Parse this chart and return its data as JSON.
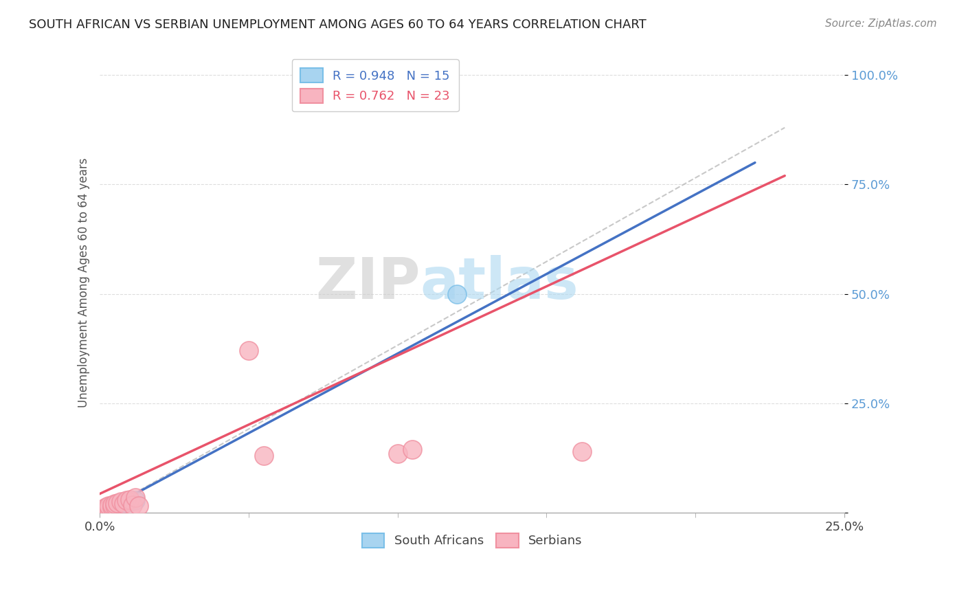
{
  "title": "SOUTH AFRICAN VS SERBIAN UNEMPLOYMENT AMONG AGES 60 TO 64 YEARS CORRELATION CHART",
  "source": "Source: ZipAtlas.com",
  "ylabel": "Unemployment Among Ages 60 to 64 years",
  "xlim": [
    0.0,
    0.25
  ],
  "ylim": [
    0.0,
    1.05
  ],
  "legend_label1": "R = 0.948   N = 15",
  "legend_label2": "R = 0.762   N = 23",
  "legend_labels": [
    "South Africans",
    "Serbians"
  ],
  "color_blue": "#A8D4F0",
  "color_pink": "#F8B4C0",
  "color_blue_line": "#4472C4",
  "color_pink_line": "#E8536A",
  "color_gray_line": "#BBBBBB",
  "watermark_zip": "ZIP",
  "watermark_atlas": "atlas",
  "background_color": "#FFFFFF",
  "sa_x": [
    0.001,
    0.002,
    0.002,
    0.003,
    0.003,
    0.004,
    0.004,
    0.005,
    0.005,
    0.006,
    0.007,
    0.008,
    0.01,
    0.012,
    0.12
  ],
  "sa_y": [
    0.005,
    0.006,
    0.009,
    0.008,
    0.012,
    0.01,
    0.014,
    0.012,
    0.016,
    0.018,
    0.02,
    0.022,
    0.025,
    0.028,
    0.5
  ],
  "serb_x": [
    0.001,
    0.001,
    0.002,
    0.002,
    0.003,
    0.003,
    0.004,
    0.004,
    0.005,
    0.005,
    0.006,
    0.007,
    0.008,
    0.009,
    0.01,
    0.011,
    0.012,
    0.013,
    0.05,
    0.055,
    0.1,
    0.105,
    0.162
  ],
  "serb_y": [
    0.004,
    0.008,
    0.007,
    0.012,
    0.01,
    0.015,
    0.013,
    0.018,
    0.016,
    0.02,
    0.022,
    0.025,
    0.02,
    0.028,
    0.03,
    0.018,
    0.035,
    0.015,
    0.37,
    0.13,
    0.135,
    0.145,
    0.14
  ],
  "sa_line": [
    0.0,
    0.0,
    0.22,
    0.8
  ],
  "serb_line": [
    -0.02,
    -0.02,
    0.23,
    0.77
  ],
  "ref_line": [
    0.0,
    0.0,
    0.23,
    0.88
  ],
  "grid_color": "#DDDDDD",
  "title_color": "#222222",
  "ytick_color": "#5B9BD5"
}
